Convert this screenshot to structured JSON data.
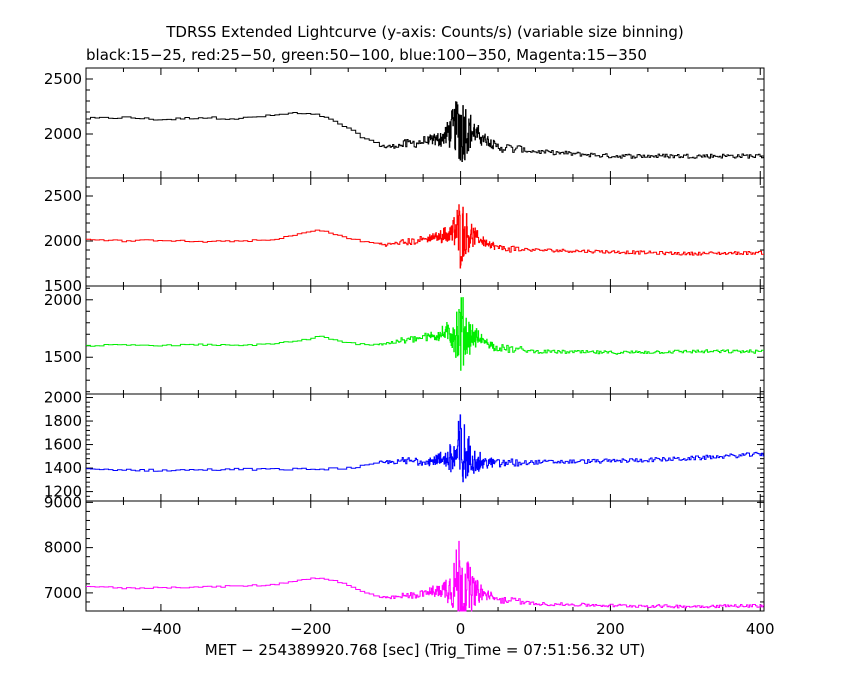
{
  "chart_data": {
    "type": "line",
    "title": "TDRSS Extended Lightcurve (y-axis: Counts/s) (variable size binning)",
    "subtitle": "black:15−25, red:25−50, green:50−100, blue:100−350, Magenta:15−350",
    "xlabel": "MET − 254389920.768 [sec] (Trig_Time = 07:51:56.32 UT)",
    "xlim": [
      -500,
      405
    ],
    "xticks": [
      -400,
      -200,
      0,
      200,
      400
    ],
    "xtick_labels": [
      "−400",
      "−200",
      "0",
      "200",
      "400"
    ],
    "grid": false,
    "panels": [
      {
        "band": "15-25",
        "color": "#000000",
        "ylim": [
          1600,
          2600
        ],
        "yticks": [
          2000,
          2500
        ],
        "ytick_labels": [
          "2000",
          "2500"
        ],
        "profile": [
          [
            -500,
            2140
          ],
          [
            -450,
            2150
          ],
          [
            -400,
            2130
          ],
          [
            -350,
            2150
          ],
          [
            -300,
            2140
          ],
          [
            -250,
            2170
          ],
          [
            -225,
            2190
          ],
          [
            -190,
            2170
          ],
          [
            -160,
            2080
          ],
          [
            -130,
            1960
          ],
          [
            -100,
            1880
          ],
          [
            -60,
            1920
          ],
          [
            -25,
            1960
          ],
          [
            -8,
            2060
          ],
          [
            0,
            2080
          ],
          [
            10,
            2040
          ],
          [
            30,
            1960
          ],
          [
            50,
            1880
          ],
          [
            100,
            1840
          ],
          [
            200,
            1800
          ],
          [
            300,
            1800
          ],
          [
            405,
            1800
          ]
        ],
        "noise": 20,
        "burst_amp": 420
      },
      {
        "band": "25-50",
        "color": "#ff0000",
        "ylim": [
          1500,
          2700
        ],
        "yticks": [
          1500,
          2000,
          2500
        ],
        "ytick_labels": [
          "1500",
          "2000",
          "2500"
        ],
        "profile": [
          [
            -500,
            2020
          ],
          [
            -450,
            2000
          ],
          [
            -400,
            2010
          ],
          [
            -350,
            1990
          ],
          [
            -300,
            2000
          ],
          [
            -250,
            2010
          ],
          [
            -220,
            2080
          ],
          [
            -190,
            2120
          ],
          [
            -160,
            2050
          ],
          [
            -130,
            1990
          ],
          [
            -100,
            1960
          ],
          [
            -60,
            2000
          ],
          [
            -25,
            2060
          ],
          [
            -8,
            2100
          ],
          [
            0,
            2100
          ],
          [
            10,
            2080
          ],
          [
            30,
            2000
          ],
          [
            50,
            1920
          ],
          [
            100,
            1900
          ],
          [
            200,
            1880
          ],
          [
            300,
            1860
          ],
          [
            405,
            1870
          ]
        ],
        "noise": 18,
        "burst_amp": 420
      },
      {
        "band": "50-100",
        "color": "#00ee00",
        "ylim": [
          1180,
          2120
        ],
        "yticks": [
          1500,
          2000
        ],
        "ytick_labels": [
          "1500",
          "2000"
        ],
        "profile": [
          [
            -500,
            1600
          ],
          [
            -450,
            1610
          ],
          [
            -400,
            1600
          ],
          [
            -350,
            1610
          ],
          [
            -300,
            1600
          ],
          [
            -250,
            1620
          ],
          [
            -220,
            1640
          ],
          [
            -190,
            1680
          ],
          [
            -160,
            1630
          ],
          [
            -130,
            1610
          ],
          [
            -100,
            1620
          ],
          [
            -60,
            1660
          ],
          [
            -25,
            1700
          ],
          [
            -8,
            1720
          ],
          [
            0,
            1720
          ],
          [
            10,
            1700
          ],
          [
            30,
            1640
          ],
          [
            50,
            1580
          ],
          [
            100,
            1550
          ],
          [
            200,
            1540
          ],
          [
            300,
            1550
          ],
          [
            405,
            1550
          ]
        ],
        "noise": 15,
        "burst_amp": 380
      },
      {
        "band": "100-350",
        "color": "#0000ff",
        "ylim": [
          1120,
          2030
        ],
        "yticks": [
          1200,
          1400,
          1600,
          1800,
          2000
        ],
        "ytick_labels": [
          "1200",
          "1400",
          "1600",
          "1800",
          "2000"
        ],
        "profile": [
          [
            -500,
            1390
          ],
          [
            -400,
            1380
          ],
          [
            -300,
            1390
          ],
          [
            -200,
            1390
          ],
          [
            -150,
            1400
          ],
          [
            -130,
            1420
          ],
          [
            -100,
            1450
          ],
          [
            -60,
            1460
          ],
          [
            -25,
            1470
          ],
          [
            -8,
            1490
          ],
          [
            0,
            1500
          ],
          [
            10,
            1490
          ],
          [
            30,
            1450
          ],
          [
            50,
            1440
          ],
          [
            100,
            1450
          ],
          [
            200,
            1460
          ],
          [
            300,
            1480
          ],
          [
            405,
            1520
          ]
        ],
        "noise": 18,
        "burst_amp": 420
      },
      {
        "band": "15-350",
        "color": "#ff00ff",
        "ylim": [
          6600,
          9030
        ],
        "yticks": [
          7000,
          8000,
          9000
        ],
        "ytick_labels": [
          "7000",
          "8000",
          "9000"
        ],
        "profile": [
          [
            -500,
            7150
          ],
          [
            -450,
            7100
          ],
          [
            -400,
            7120
          ],
          [
            -350,
            7130
          ],
          [
            -300,
            7150
          ],
          [
            -250,
            7180
          ],
          [
            -220,
            7280
          ],
          [
            -190,
            7340
          ],
          [
            -160,
            7220
          ],
          [
            -130,
            7000
          ],
          [
            -100,
            6880
          ],
          [
            -60,
            6960
          ],
          [
            -25,
            7060
          ],
          [
            -8,
            7200
          ],
          [
            0,
            7200
          ],
          [
            10,
            7100
          ],
          [
            30,
            6980
          ],
          [
            50,
            6860
          ],
          [
            100,
            6760
          ],
          [
            200,
            6720
          ],
          [
            300,
            6700
          ],
          [
            405,
            6720
          ]
        ],
        "noise": 35,
        "burst_amp": 1400
      }
    ]
  }
}
